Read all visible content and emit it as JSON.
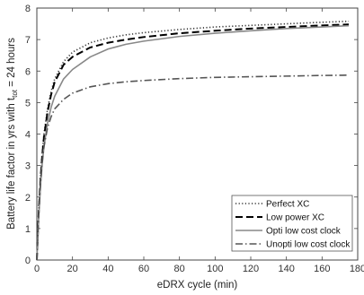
{
  "chart_data": {
    "type": "line",
    "xlabel": "eDRX cycle (min)",
    "ylabel": {
      "main": "Battery life factor in yrs with t",
      "sub": "tot",
      "tail": " = 24 hours"
    },
    "xlim": [
      0,
      180
    ],
    "ylim": [
      0,
      8
    ],
    "xticks": [
      "0",
      "20",
      "40",
      "60",
      "80",
      "100",
      "120",
      "140",
      "160",
      "180"
    ],
    "yticks": [
      "0",
      "1",
      "2",
      "3",
      "4",
      "5",
      "6",
      "7",
      "8"
    ],
    "grid": false,
    "legend_position": "bottom-right",
    "series": [
      {
        "name": "Perfect XC",
        "style": "dotted",
        "color": "#333333",
        "x": [
          0,
          1,
          2,
          3,
          4,
          6,
          8,
          10,
          15,
          20,
          30,
          40,
          50,
          60,
          80,
          100,
          120,
          140,
          160,
          175
        ],
        "y": [
          0,
          1.5,
          2.6,
          3.4,
          4.0,
          4.8,
          5.35,
          5.75,
          6.3,
          6.6,
          6.9,
          7.05,
          7.15,
          7.22,
          7.32,
          7.4,
          7.45,
          7.5,
          7.55,
          7.58
        ]
      },
      {
        "name": "Low power XC",
        "style": "dashed",
        "color": "#000000",
        "x": [
          0,
          1,
          2,
          3,
          4,
          6,
          8,
          10,
          15,
          20,
          30,
          40,
          50,
          60,
          80,
          100,
          120,
          140,
          160,
          175
        ],
        "y": [
          0,
          1.45,
          2.5,
          3.3,
          3.9,
          4.7,
          5.25,
          5.65,
          6.2,
          6.45,
          6.75,
          6.9,
          7.0,
          7.08,
          7.2,
          7.28,
          7.35,
          7.4,
          7.45,
          7.48
        ]
      },
      {
        "name": "Opti low cost clock",
        "style": "solid",
        "color": "#888888",
        "x": [
          0,
          1,
          2,
          3,
          4,
          6,
          8,
          10,
          15,
          20,
          30,
          40,
          50,
          60,
          80,
          100,
          120,
          140,
          160,
          175
        ],
        "y": [
          0,
          1.3,
          2.3,
          3.05,
          3.6,
          4.35,
          4.85,
          5.2,
          5.75,
          6.05,
          6.45,
          6.7,
          6.85,
          6.95,
          7.1,
          7.2,
          7.28,
          7.35,
          7.4,
          7.44
        ]
      },
      {
        "name": "Unopti low cost clock",
        "style": "dashdot",
        "color": "#555555",
        "x": [
          0,
          1,
          2,
          3,
          4,
          6,
          8,
          10,
          15,
          20,
          30,
          40,
          50,
          60,
          80,
          100,
          120,
          140,
          160,
          175
        ],
        "y": [
          0,
          1.4,
          2.4,
          3.1,
          3.6,
          4.2,
          4.55,
          4.8,
          5.1,
          5.3,
          5.5,
          5.6,
          5.66,
          5.7,
          5.76,
          5.8,
          5.82,
          5.84,
          5.86,
          5.87
        ]
      }
    ]
  }
}
